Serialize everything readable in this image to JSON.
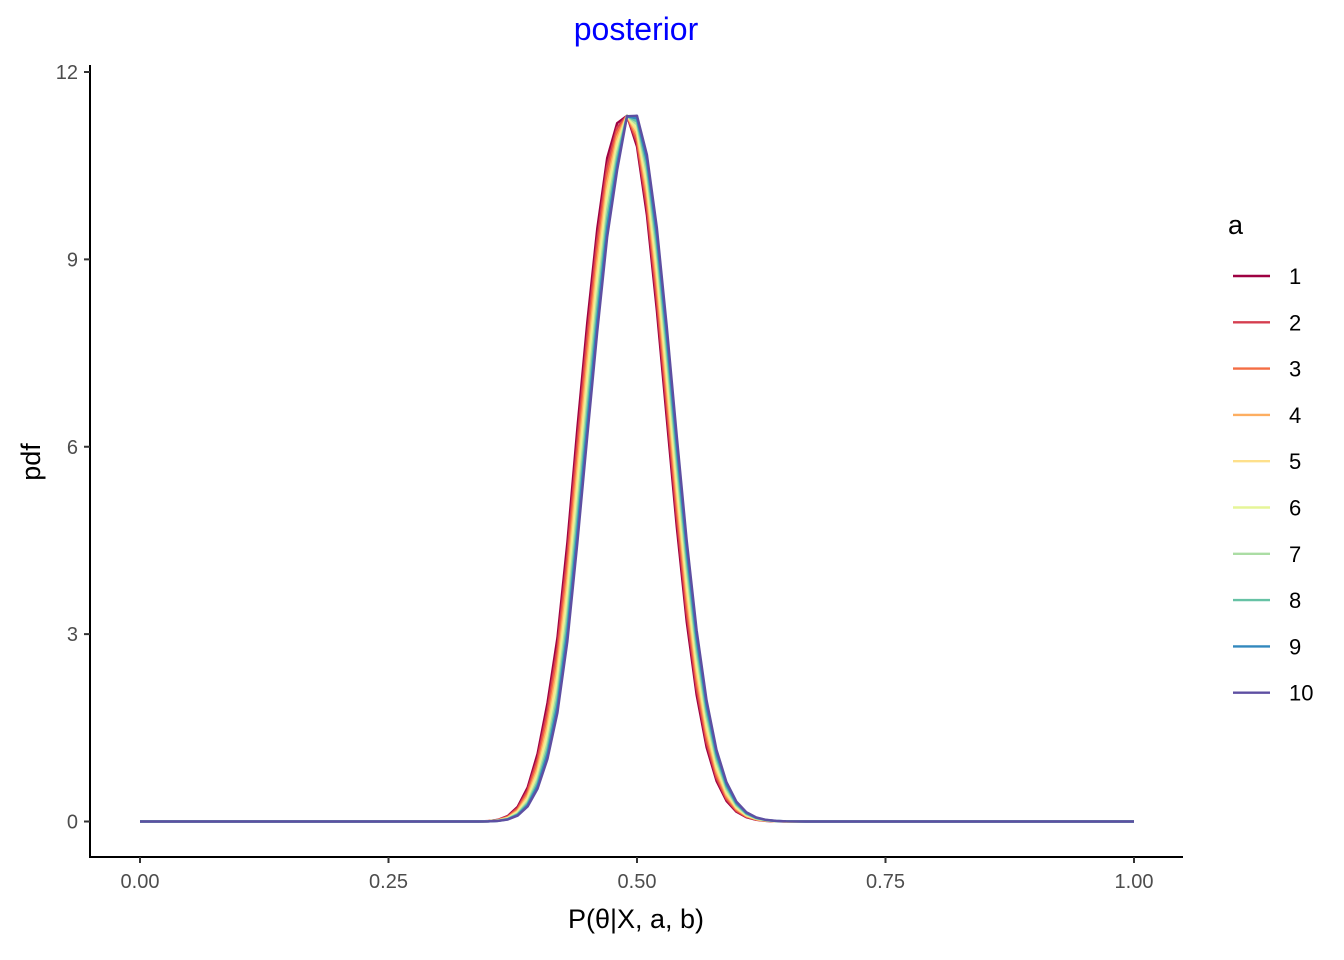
{
  "chart_data": {
    "type": "line",
    "title": "posterior",
    "title_color": "#0000ff",
    "xlabel": "P(θ|X, a, b)",
    "ylabel": "pdf",
    "xlim": [
      0,
      1
    ],
    "ylim": [
      0,
      12
    ],
    "xticks": [
      0,
      0.25,
      0.5,
      0.75,
      1
    ],
    "xtick_labels": [
      "0.00",
      "0.25",
      "0.50",
      "0.75",
      "1.00"
    ],
    "yticks": [
      0,
      3,
      6,
      9,
      12
    ],
    "ytick_labels": [
      "0",
      "3",
      "6",
      "9",
      "12"
    ],
    "grid": false,
    "legend": {
      "title": "a",
      "placement": "right"
    },
    "x": [
      0.0,
      0.01,
      0.02,
      0.03,
      0.04,
      0.05,
      0.06,
      0.07,
      0.08,
      0.09,
      0.1,
      0.11,
      0.12,
      0.13,
      0.14,
      0.15,
      0.16,
      0.17,
      0.18,
      0.19,
      0.2,
      0.21,
      0.22,
      0.23,
      0.24,
      0.25,
      0.26,
      0.27,
      0.28,
      0.29,
      0.3,
      0.31,
      0.32,
      0.33,
      0.34,
      0.35,
      0.36,
      0.37,
      0.38,
      0.39,
      0.4,
      0.41,
      0.42,
      0.43,
      0.44,
      0.45,
      0.46,
      0.47,
      0.48,
      0.49,
      0.5,
      0.51,
      0.52,
      0.53,
      0.54,
      0.55,
      0.56,
      0.57,
      0.58,
      0.59,
      0.6,
      0.61,
      0.62,
      0.63,
      0.64,
      0.65,
      0.66,
      0.67,
      0.68,
      0.69,
      0.7,
      0.71,
      0.72,
      0.73,
      0.74,
      0.75,
      0.76,
      0.77,
      0.78,
      0.79,
      0.8,
      0.81,
      0.82,
      0.83,
      0.84,
      0.85,
      0.86,
      0.87,
      0.88,
      0.89,
      0.9,
      0.91,
      0.92,
      0.93,
      0.94,
      0.95,
      0.96,
      0.97,
      0.98,
      0.99,
      1.0
    ],
    "series": [
      {
        "name": "1",
        "color": "#9e0142",
        "values": [
          0,
          0,
          0,
          0,
          0,
          0,
          0,
          0,
          0,
          0,
          0,
          0,
          0,
          0,
          0,
          0,
          0,
          0,
          0,
          0,
          0,
          0,
          0,
          0,
          0,
          0,
          0,
          0,
          0,
          0,
          0,
          0,
          0,
          0,
          0,
          0.006,
          0.027,
          0.088,
          0.237,
          0.545,
          1.088,
          1.904,
          2.947,
          4.474,
          6.296,
          7.995,
          9.489,
          10.624,
          11.181,
          11.3,
          10.806,
          9.705,
          8.177,
          6.443,
          4.718,
          3.198,
          2.024,
          1.189,
          0.649,
          0.33,
          0.156,
          0.068,
          0.027,
          0.01,
          0.003,
          0.001,
          0,
          0,
          0,
          0,
          0,
          0,
          0,
          0,
          0,
          0,
          0,
          0,
          0,
          0,
          0,
          0,
          0,
          0,
          0,
          0,
          0,
          0,
          0,
          0,
          0,
          0,
          0,
          0,
          0,
          0,
          0,
          0,
          0,
          0,
          0
        ]
      },
      {
        "name": "2",
        "color": "#d53e4f",
        "values": [
          0,
          0,
          0,
          0,
          0,
          0,
          0,
          0,
          0,
          0,
          0,
          0,
          0,
          0,
          0,
          0,
          0,
          0,
          0,
          0,
          0,
          0,
          0,
          0,
          0,
          0,
          0,
          0,
          0,
          0,
          0,
          0,
          0,
          0,
          0,
          0.005,
          0.024,
          0.078,
          0.213,
          0.498,
          1.005,
          1.778,
          2.785,
          4.269,
          6.071,
          7.778,
          9.306,
          10.492,
          11.109,
          11.301,
          10.873,
          9.826,
          8.334,
          6.612,
          4.88,
          3.337,
          2.13,
          1.264,
          0.697,
          0.358,
          0.171,
          0.076,
          0.031,
          0.011,
          0.004,
          0.001,
          0,
          0,
          0,
          0,
          0,
          0,
          0,
          0,
          0,
          0,
          0,
          0,
          0,
          0,
          0,
          0,
          0,
          0,
          0,
          0,
          0,
          0,
          0,
          0,
          0,
          0,
          0,
          0,
          0,
          0,
          0,
          0,
          0,
          0,
          0
        ]
      },
      {
        "name": "3",
        "color": "#f46d43",
        "values": [
          0,
          0,
          0,
          0,
          0,
          0,
          0,
          0,
          0,
          0,
          0,
          0,
          0,
          0,
          0,
          0,
          0,
          0,
          0,
          0,
          0,
          0,
          0,
          0,
          0,
          0,
          0,
          0,
          0,
          0,
          0,
          0,
          0,
          0,
          0,
          0.004,
          0.021,
          0.07,
          0.192,
          0.455,
          0.928,
          1.66,
          2.632,
          4.072,
          5.852,
          7.565,
          9.124,
          10.359,
          11.035,
          11.301,
          10.936,
          9.943,
          8.489,
          6.779,
          5.043,
          3.478,
          2.239,
          1.341,
          0.747,
          0.387,
          0.186,
          0.083,
          0.034,
          0.013,
          0.005,
          0.001,
          0,
          0,
          0,
          0,
          0,
          0,
          0,
          0,
          0,
          0,
          0,
          0,
          0,
          0,
          0,
          0,
          0,
          0,
          0,
          0,
          0,
          0,
          0,
          0,
          0,
          0,
          0,
          0,
          0,
          0,
          0,
          0,
          0,
          0,
          0
        ]
      },
      {
        "name": "4",
        "color": "#fdae61",
        "values": [
          0,
          0,
          0,
          0,
          0,
          0,
          0,
          0,
          0,
          0,
          0,
          0,
          0,
          0,
          0,
          0,
          0,
          0,
          0,
          0,
          0,
          0,
          0,
          0,
          0,
          0,
          0,
          0,
          0,
          0,
          0,
          0,
          0,
          0,
          0,
          0.004,
          0.018,
          0.062,
          0.173,
          0.415,
          0.856,
          1.547,
          2.485,
          3.882,
          5.638,
          7.355,
          8.94,
          10.223,
          10.958,
          11.301,
          10.996,
          10.057,
          8.641,
          6.945,
          5.205,
          3.621,
          2.351,
          1.42,
          0.799,
          0.418,
          0.203,
          0.091,
          0.038,
          0.015,
          0.005,
          0.002,
          0,
          0,
          0,
          0,
          0,
          0,
          0,
          0,
          0,
          0,
          0,
          0,
          0,
          0,
          0,
          0,
          0,
          0,
          0,
          0,
          0,
          0,
          0,
          0,
          0,
          0,
          0,
          0,
          0,
          0,
          0,
          0,
          0,
          0,
          0
        ]
      },
      {
        "name": "5",
        "color": "#fee08b",
        "values": [
          0,
          0,
          0,
          0,
          0,
          0,
          0,
          0,
          0,
          0,
          0,
          0,
          0,
          0,
          0,
          0,
          0,
          0,
          0,
          0,
          0,
          0,
          0,
          0,
          0,
          0,
          0,
          0,
          0,
          0,
          0,
          0,
          0,
          0,
          0,
          0.003,
          0.016,
          0.056,
          0.156,
          0.378,
          0.79,
          1.442,
          2.346,
          3.7,
          5.428,
          7.147,
          8.756,
          10.084,
          10.877,
          11.301,
          11.053,
          10.167,
          8.791,
          7.11,
          5.368,
          3.765,
          2.464,
          1.502,
          0.852,
          0.45,
          0.22,
          0.1,
          0.042,
          0.016,
          0.006,
          0.002,
          0,
          0,
          0,
          0,
          0,
          0,
          0,
          0,
          0,
          0,
          0,
          0,
          0,
          0,
          0,
          0,
          0,
          0,
          0,
          0,
          0,
          0,
          0,
          0,
          0,
          0,
          0,
          0,
          0,
          0,
          0,
          0,
          0,
          0,
          0
        ]
      },
      {
        "name": "6",
        "color": "#e6f598",
        "values": [
          0,
          0,
          0,
          0,
          0,
          0,
          0,
          0,
          0,
          0,
          0,
          0,
          0,
          0,
          0,
          0,
          0,
          0,
          0,
          0,
          0,
          0,
          0,
          0,
          0,
          0,
          0,
          0,
          0,
          0,
          0,
          0,
          0,
          0,
          0,
          0.003,
          0.014,
          0.05,
          0.141,
          0.345,
          0.728,
          1.343,
          2.213,
          3.525,
          5.224,
          6.944,
          8.572,
          9.943,
          10.792,
          11.3,
          11.108,
          10.275,
          8.939,
          7.275,
          5.53,
          3.911,
          2.58,
          1.585,
          0.908,
          0.483,
          0.238,
          0.109,
          0.046,
          0.018,
          0.007,
          0.002,
          0.001,
          0,
          0,
          0,
          0,
          0,
          0,
          0,
          0,
          0,
          0,
          0,
          0,
          0,
          0,
          0,
          0,
          0,
          0,
          0,
          0,
          0,
          0,
          0,
          0,
          0,
          0,
          0,
          0,
          0,
          0,
          0,
          0,
          0,
          0
        ]
      },
      {
        "name": "7",
        "color": "#abdda4",
        "values": [
          0,
          0,
          0,
          0,
          0,
          0,
          0,
          0,
          0,
          0,
          0,
          0,
          0,
          0,
          0,
          0,
          0,
          0,
          0,
          0,
          0,
          0,
          0,
          0,
          0,
          0,
          0,
          0,
          0,
          0,
          0,
          0,
          0,
          0,
          0,
          0.002,
          0.012,
          0.044,
          0.127,
          0.315,
          0.671,
          1.25,
          2.087,
          3.356,
          5.024,
          6.743,
          8.388,
          9.799,
          10.705,
          11.298,
          11.16,
          10.379,
          9.085,
          7.438,
          5.692,
          4.058,
          2.698,
          1.671,
          0.966,
          0.518,
          0.257,
          0.118,
          0.05,
          0.02,
          0.007,
          0.002,
          0.001,
          0,
          0,
          0,
          0,
          0,
          0,
          0,
          0,
          0,
          0,
          0,
          0,
          0,
          0,
          0,
          0,
          0,
          0,
          0,
          0,
          0,
          0,
          0,
          0,
          0,
          0,
          0,
          0,
          0,
          0,
          0,
          0,
          0,
          0
        ]
      },
      {
        "name": "8",
        "color": "#66c2a5",
        "values": [
          0,
          0,
          0,
          0,
          0,
          0,
          0,
          0,
          0,
          0,
          0,
          0,
          0,
          0,
          0,
          0,
          0,
          0,
          0,
          0,
          0,
          0,
          0,
          0,
          0,
          0,
          0,
          0,
          0,
          0,
          0,
          0,
          0,
          0,
          0,
          0.002,
          0.011,
          0.039,
          0.115,
          0.288,
          0.619,
          1.163,
          1.967,
          3.194,
          4.83,
          6.547,
          8.204,
          9.653,
          10.614,
          11.297,
          11.209,
          10.481,
          9.228,
          7.6,
          5.854,
          4.206,
          2.818,
          1.759,
          1.025,
          0.555,
          0.277,
          0.128,
          0.055,
          0.022,
          0.008,
          0.003,
          0.001,
          0,
          0,
          0,
          0,
          0,
          0,
          0,
          0,
          0,
          0,
          0,
          0,
          0,
          0,
          0,
          0,
          0,
          0,
          0,
          0,
          0,
          0,
          0,
          0,
          0,
          0,
          0,
          0,
          0,
          0,
          0,
          0,
          0,
          0
        ]
      },
      {
        "name": "9",
        "color": "#3288bd",
        "values": [
          0,
          0,
          0,
          0,
          0,
          0,
          0,
          0,
          0,
          0,
          0,
          0,
          0,
          0,
          0,
          0,
          0,
          0,
          0,
          0,
          0,
          0,
          0,
          0,
          0,
          0,
          0,
          0,
          0,
          0,
          0,
          0,
          0,
          0,
          0,
          0.002,
          0.01,
          0.035,
          0.104,
          0.263,
          0.571,
          1.081,
          1.853,
          3.038,
          4.642,
          6.355,
          8.02,
          9.505,
          10.521,
          11.295,
          11.256,
          10.579,
          9.368,
          7.761,
          6.016,
          4.355,
          2.94,
          1.849,
          1.086,
          0.592,
          0.298,
          0.138,
          0.06,
          0.024,
          0.009,
          0.003,
          0.001,
          0,
          0,
          0,
          0,
          0,
          0,
          0,
          0,
          0,
          0,
          0,
          0,
          0,
          0,
          0,
          0,
          0,
          0,
          0,
          0,
          0,
          0,
          0,
          0,
          0,
          0,
          0,
          0,
          0,
          0,
          0,
          0,
          0,
          0
        ]
      },
      {
        "name": "10",
        "color": "#5e4fa2",
        "values": [
          0,
          0,
          0,
          0,
          0,
          0,
          0,
          0,
          0,
          0,
          0,
          0,
          0,
          0,
          0,
          0,
          0,
          0,
          0,
          0,
          0,
          0,
          0,
          0,
          0,
          0,
          0,
          0,
          0,
          0,
          0,
          0,
          0,
          0,
          0,
          0.001,
          0.009,
          0.031,
          0.094,
          0.24,
          0.526,
          1.004,
          1.743,
          2.889,
          4.459,
          6.167,
          7.837,
          9.355,
          10.424,
          11.293,
          11.3,
          10.675,
          9.506,
          7.919,
          6.177,
          4.504,
          3.064,
          1.941,
          1.148,
          0.631,
          0.32,
          0.149,
          0.065,
          0.026,
          0.01,
          0.003,
          0.001,
          0,
          0,
          0,
          0,
          0,
          0,
          0,
          0,
          0,
          0,
          0,
          0,
          0,
          0,
          0,
          0,
          0,
          0,
          0,
          0,
          0,
          0,
          0,
          0,
          0,
          0,
          0,
          0,
          0,
          0,
          0,
          0,
          0,
          0
        ]
      }
    ]
  }
}
